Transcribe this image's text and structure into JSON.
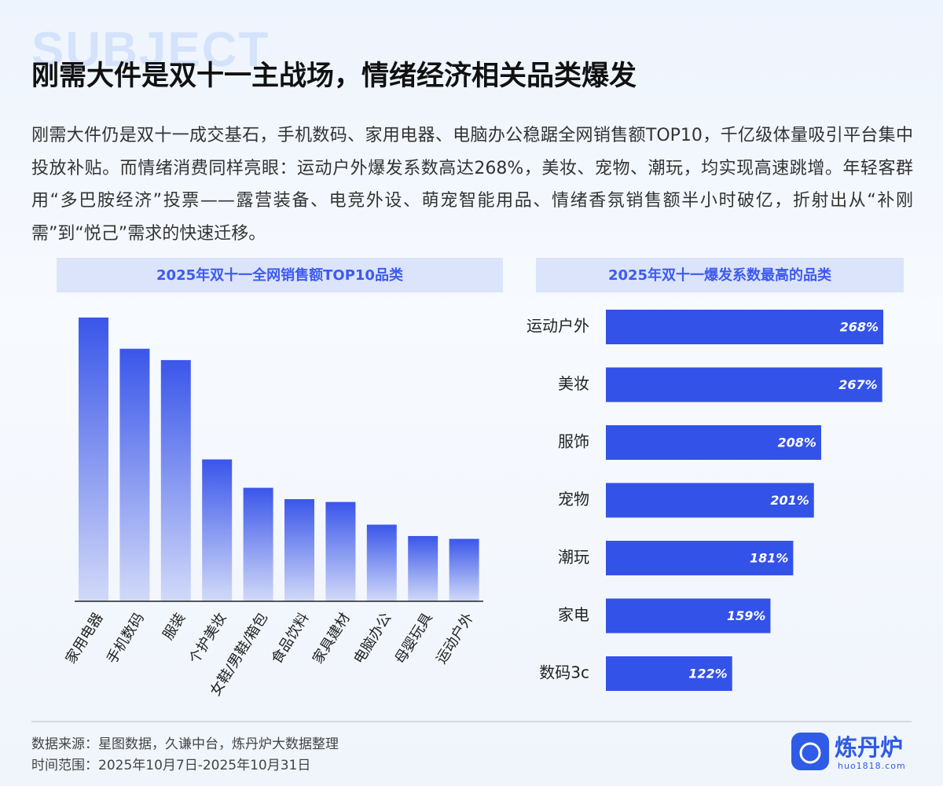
{
  "header": {
    "watermark": "SUBJECT",
    "title": "刚需大件是双十一主战场，情绪经济相关品类爆发"
  },
  "body": "刚需大件仍是双十一成交基石，手机数码、家用电器、电脑办公稳踞全网销售额TOP10，千亿级体量吸引平台集中投放补贴。而情绪消费同样亮眼：运动户外爆发系数高达268%，美妆、宠物、潮玩，均实现高速跳增。年轻客群用“多巴胺经济”投票——露营装备、电竞外设、萌宠智能用品、情绪香氛销售额半小时破亿，折射出从“补刚需”到“悦己”需求的快速迁移。",
  "chart_data": [
    {
      "type": "bar",
      "title": "2025年双十一全网销售额TOP10品类",
      "categories": [
        "家用电器",
        "手机数码",
        "服装",
        "个护美妆",
        "女鞋/男鞋/箱包",
        "食品饮料",
        "家具建材",
        "电脑办公",
        "母婴玩具",
        "运动户外"
      ],
      "values": [
        100,
        89,
        85,
        50,
        40,
        36,
        35,
        27,
        23,
        22
      ],
      "color": "#3a56ea",
      "ylim": [
        0,
        100
      ]
    },
    {
      "type": "bar",
      "orientation": "horizontal",
      "title": "2025年双十一爆发系数最高的品类",
      "categories": [
        "运动户外",
        "美妆",
        "服饰",
        "宠物",
        "潮玩",
        "家电",
        "数码3c"
      ],
      "values": [
        268,
        267,
        208,
        201,
        181,
        159,
        122
      ],
      "value_labels": [
        "268%",
        "267%",
        "208%",
        "201%",
        "181%",
        "159%",
        "122%"
      ],
      "color": "#3352e8",
      "xlim": [
        0,
        268
      ]
    }
  ],
  "footer": {
    "source": "数据来源：星图数据，久谦中台，炼丹炉大数据整理",
    "period": "时间范围：2025年10月7日-2025年10月31日",
    "brand": "炼丹炉",
    "site": "huo1818.com"
  }
}
